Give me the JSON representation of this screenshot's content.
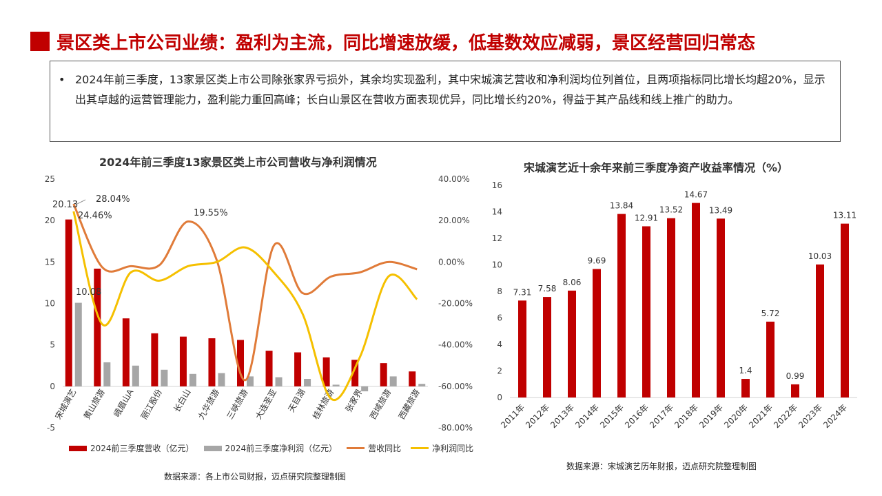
{
  "header": {
    "title": "景区类上市公司业绩：盈利为主流，同比增速放缓，低基数效应减弱，景区经营回归常态",
    "accent_color": "#c00000"
  },
  "summary": {
    "bullet": "•",
    "text": "2024年前三季度，13家景区类上市公司除张家界亏损外，其余均实现盈利，其中宋城演艺营收和净利润均位列首位，且两项指标同比增长均超20%，显示出其卓越的运营管理能力，盈利能力重回高峰；长白山景区在营收方面表现优异，同比增长约20%，得益于其产品线和线上推广的助力。"
  },
  "left_chart": {
    "source": "数据来源：各上市公司财报，迈点研究院整理制图"
  },
  "right_chart": {
    "source": "数据来源：宋城演艺历年财报，迈点研究院整理制图"
  },
  "chart_data": [
    {
      "type": "bar",
      "title": "2024年前三季度13家景区类上市公司营收与净利润情况",
      "categories": [
        "宋城演艺",
        "黄山旅游",
        "峨眉山A",
        "丽江股份",
        "长白山",
        "九华旅游",
        "三峡旅游",
        "大连圣亚",
        "天目湖",
        "桂林旅游",
        "张家界",
        "西域旅游",
        "西藏旅游"
      ],
      "series": [
        {
          "name": "2024前三季度营收（亿元）",
          "kind": "bar",
          "axis": "left",
          "color": "#c00000",
          "values": [
            20.13,
            14.2,
            8.2,
            6.4,
            6.0,
            5.8,
            5.6,
            4.3,
            4.1,
            3.5,
            3.2,
            2.8,
            1.8
          ]
        },
        {
          "name": "2024前三季度净利润（亿元）",
          "kind": "bar",
          "axis": "left",
          "color": "#a6a6a6",
          "values": [
            10.08,
            2.9,
            2.5,
            2.0,
            1.5,
            1.6,
            1.2,
            1.1,
            0.9,
            0.2,
            -0.6,
            1.2,
            0.3
          ]
        },
        {
          "name": "营收同比",
          "kind": "line",
          "axis": "right",
          "color": "#e07b39",
          "values": [
            28.04,
            -2.5,
            -2.0,
            -1.5,
            19.55,
            1.0,
            -57.0,
            8.0,
            -15.0,
            -7.0,
            -5.0,
            0.0,
            -3.5
          ]
        },
        {
          "name": "净利润同比",
          "kind": "line",
          "axis": "right",
          "color": "#f5c000",
          "values": [
            24.46,
            -30.0,
            -5.0,
            -9.0,
            -2.0,
            0.0,
            7.0,
            -5.0,
            -25.0,
            -66.0,
            -46.0,
            -7.0,
            -18.0
          ]
        }
      ],
      "ylim": [
        -5,
        25
      ],
      "yticks": [
        -5,
        0,
        5,
        10,
        15,
        20,
        25
      ],
      "y2lim": [
        -80,
        40
      ],
      "y2ticks": [
        "-80.00%",
        "-60.00%",
        "-40.00%",
        "-20.00%",
        "0.00%",
        "20.00%",
        "40.00%"
      ],
      "data_labels": [
        "20.13",
        "10.08",
        "28.04%",
        "24.46%",
        "19.55%"
      ],
      "legend": "bottom"
    },
    {
      "type": "bar",
      "title": "宋城演艺近十余年来前三季度净资产收益率情况（%）",
      "categories": [
        "2011年",
        "2012年",
        "2013年",
        "2014年",
        "2015年",
        "2016年",
        "2017年",
        "2018年",
        "2019年",
        "2020年",
        "2021年",
        "2022年",
        "2023年",
        "2024年"
      ],
      "values": [
        7.31,
        7.58,
        8.06,
        9.69,
        13.84,
        12.91,
        13.52,
        14.67,
        13.49,
        1.4,
        5.72,
        0.99,
        10.03,
        13.11
      ],
      "value_labels": [
        "7.31",
        "7.58",
        "8.06",
        "9.69",
        "13.84",
        "12.91",
        "13.52",
        "14.67",
        "13.49",
        "1.4",
        "5.72",
        "0.99",
        "10.03",
        "13.11"
      ],
      "ylim": [
        0,
        16
      ],
      "yticks": [
        0,
        2,
        4,
        6,
        8,
        10,
        12,
        14,
        16
      ],
      "color": "#c00000"
    }
  ]
}
